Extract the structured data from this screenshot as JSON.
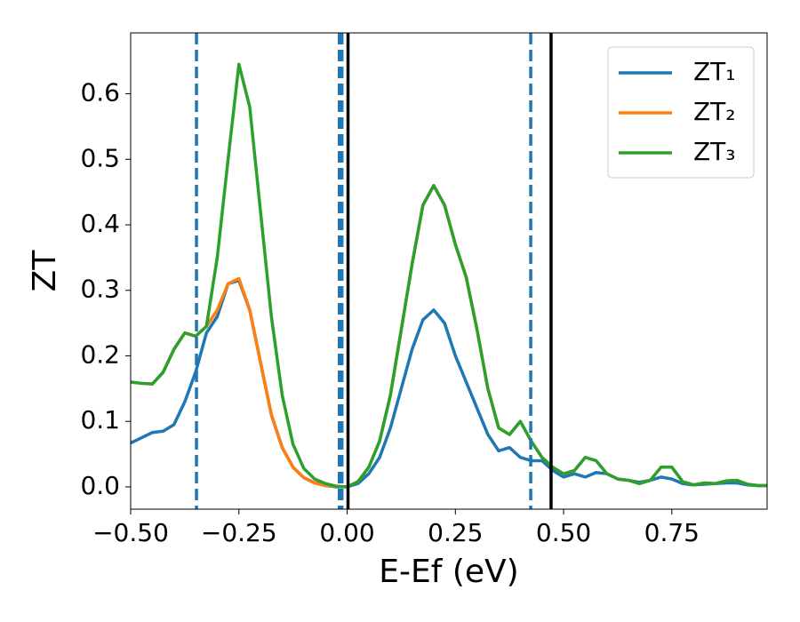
{
  "chart_data": {
    "type": "line",
    "x_label": "E-Ef (eV)",
    "y_label": "ZT",
    "x": [
      -0.5,
      -0.475,
      -0.45,
      -0.425,
      -0.4,
      -0.375,
      -0.35,
      -0.325,
      -0.3,
      -0.275,
      -0.25,
      -0.225,
      -0.2,
      -0.175,
      -0.15,
      -0.125,
      -0.1,
      -0.075,
      -0.05,
      -0.025,
      0,
      0.025,
      0.05,
      0.075,
      0.1,
      0.125,
      0.15,
      0.175,
      0.2,
      0.225,
      0.25,
      0.275,
      0.3,
      0.325,
      0.35,
      0.375,
      0.4,
      0.425,
      0.45,
      0.475,
      0.5,
      0.525,
      0.55,
      0.575,
      0.6,
      0.625,
      0.65,
      0.675,
      0.7,
      0.725,
      0.75,
      0.775,
      0.8,
      0.825,
      0.85,
      0.875,
      0.9,
      0.925,
      0.95,
      0.97
    ],
    "series": [
      {
        "name": "ZT₁",
        "color": "#1f77b4",
        "values": [
          0.067,
          0.075,
          0.083,
          0.085,
          0.095,
          0.13,
          0.175,
          0.235,
          0.26,
          0.31,
          0.315,
          0.27,
          0.19,
          0.11,
          0.06,
          0.03,
          0.014,
          0.006,
          0.002,
          0.0,
          0.0,
          0.005,
          0.02,
          0.045,
          0.09,
          0.15,
          0.21,
          0.255,
          0.27,
          0.25,
          0.2,
          0.16,
          0.12,
          0.08,
          0.055,
          0.06,
          0.045,
          0.04,
          0.04,
          0.025,
          0.015,
          0.02,
          0.015,
          0.022,
          0.02,
          0.012,
          0.01,
          0.007,
          0.01,
          0.015,
          0.012,
          0.005,
          0.003,
          0.004,
          0.005,
          0.006,
          0.006,
          0.003,
          0.002,
          0.002
        ]
      },
      {
        "name": "ZT₂",
        "color": "#ff7f0e",
        "values": [
          0.16,
          0.158,
          0.157,
          0.175,
          0.21,
          0.235,
          0.23,
          0.245,
          0.27,
          0.31,
          0.318,
          0.27,
          0.19,
          0.11,
          0.06,
          0.03,
          0.014,
          0.006,
          0.002,
          0.001,
          0.0,
          0.008,
          0.03,
          0.07,
          0.14,
          0.24,
          0.34,
          0.43,
          0.46,
          0.43,
          0.37,
          0.32,
          0.24,
          0.15,
          0.09,
          0.08,
          0.1,
          0.07,
          0.045,
          0.03,
          0.02,
          0.025,
          0.045,
          0.04,
          0.02,
          0.012,
          0.01,
          0.005,
          0.01,
          0.03,
          0.03,
          0.008,
          0.003,
          0.006,
          0.005,
          0.009,
          0.01,
          0.004,
          0.002,
          0.002
        ]
      },
      {
        "name": "ZT₃",
        "color": "#2ca02c",
        "values": [
          0.16,
          0.158,
          0.157,
          0.175,
          0.21,
          0.235,
          0.23,
          0.245,
          0.35,
          0.5,
          0.645,
          0.58,
          0.42,
          0.26,
          0.14,
          0.065,
          0.028,
          0.012,
          0.005,
          0.001,
          0.0,
          0.008,
          0.03,
          0.07,
          0.14,
          0.24,
          0.34,
          0.43,
          0.46,
          0.43,
          0.37,
          0.32,
          0.24,
          0.15,
          0.09,
          0.08,
          0.1,
          0.07,
          0.045,
          0.03,
          0.02,
          0.025,
          0.045,
          0.04,
          0.02,
          0.012,
          0.01,
          0.005,
          0.01,
          0.03,
          0.03,
          0.008,
          0.003,
          0.006,
          0.005,
          0.009,
          0.01,
          0.004,
          0.002,
          0.002
        ]
      }
    ],
    "vlines": [
      {
        "x": -0.348,
        "color": "#1f77b4",
        "style": "dashed"
      },
      {
        "x": -0.018,
        "color": "#1f77b4",
        "style": "dashed"
      },
      {
        "x": -0.012,
        "color": "#1f77b4",
        "style": "dashed"
      },
      {
        "x": 0.424,
        "color": "#1f77b4",
        "style": "dashed"
      },
      {
        "x": 0.002,
        "color": "#000000",
        "style": "solid"
      },
      {
        "x": 0.471,
        "color": "#000000",
        "style": "solid"
      }
    ],
    "xlim": [
      -0.5,
      0.97
    ],
    "ylim": [
      -0.034,
      0.693
    ],
    "xticks": [
      {
        "value": -0.5,
        "label": "−0.50"
      },
      {
        "value": -0.25,
        "label": "−0.25"
      },
      {
        "value": 0,
        "label": "0.00"
      },
      {
        "value": 0.25,
        "label": "0.25"
      },
      {
        "value": 0.5,
        "label": "0.50"
      },
      {
        "value": 0.75,
        "label": "0.75"
      }
    ],
    "yticks": [
      {
        "value": 0,
        "label": "0.0"
      },
      {
        "value": 0.1,
        "label": "0.1"
      },
      {
        "value": 0.2,
        "label": "0.2"
      },
      {
        "value": 0.3,
        "label": "0.3"
      },
      {
        "value": 0.4,
        "label": "0.4"
      },
      {
        "value": 0.5,
        "label": "0.5"
      },
      {
        "value": 0.6,
        "label": "0.6"
      }
    ],
    "legend": "upper right",
    "grid": false
  }
}
